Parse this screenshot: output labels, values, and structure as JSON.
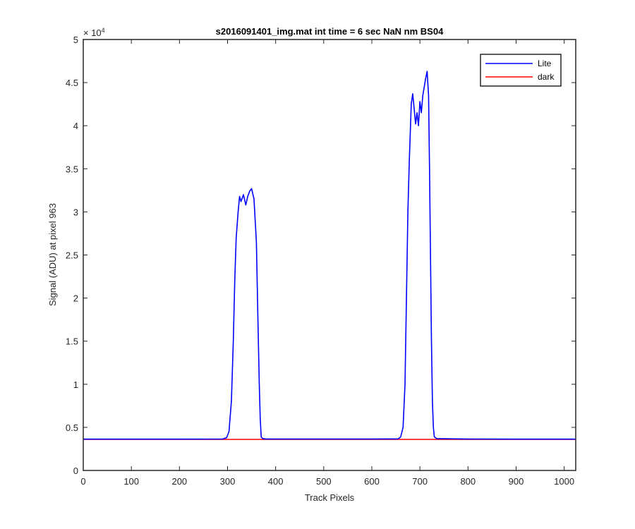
{
  "chart_data": {
    "type": "line",
    "title": "s2016091401_img.mat int time = 6 sec  NaN nm BS04",
    "xlabel": "Track Pixels",
    "ylabel": "Signal (ADU) at pixel 963",
    "xlim": [
      0,
      1024
    ],
    "ylim": [
      0,
      50000
    ],
    "xticks": [
      0,
      100,
      200,
      300,
      400,
      500,
      600,
      700,
      800,
      900,
      1000
    ],
    "xtick_labels": [
      "0",
      "100",
      "200",
      "300",
      "400",
      "500",
      "600",
      "700",
      "800",
      "900",
      "1000"
    ],
    "yticks": [
      0,
      5000,
      10000,
      15000,
      20000,
      25000,
      30000,
      35000,
      40000,
      45000,
      50000
    ],
    "ytick_labels": [
      "0",
      "0.5",
      "1",
      "1.5",
      "2",
      "2.5",
      "3",
      "3.5",
      "4",
      "4.5",
      "5"
    ],
    "y_exponent_label": "× 10",
    "y_exponent": "4",
    "grid": false,
    "legend_position": "top-right",
    "series": [
      {
        "name": "Lite",
        "color": "#0000ff",
        "x": [
          0,
          100,
          200,
          290,
          298,
          303,
          308,
          312,
          315,
          318,
          322,
          325,
          328,
          333,
          338,
          342,
          346,
          350,
          355,
          360,
          363,
          366,
          368,
          370,
          373,
          380,
          500,
          600,
          655,
          660,
          665,
          669,
          672,
          675,
          678,
          682,
          685,
          688,
          691,
          694,
          697,
          700,
          703,
          706,
          709,
          712,
          715,
          718,
          720,
          722,
          724,
          726,
          728,
          730,
          735,
          800,
          900,
          1024
        ],
        "y": [
          3640,
          3640,
          3640,
          3650,
          3800,
          4500,
          8000,
          15000,
          22000,
          27000,
          30000,
          31800,
          31200,
          32000,
          30800,
          31800,
          32400,
          32700,
          31500,
          26500,
          18000,
          10000,
          6000,
          3900,
          3700,
          3650,
          3650,
          3650,
          3670,
          3900,
          5000,
          10000,
          20000,
          30000,
          36000,
          42500,
          43700,
          42000,
          40200,
          41500,
          40000,
          42800,
          41500,
          43500,
          44500,
          45500,
          46300,
          43500,
          35000,
          25000,
          15000,
          8000,
          5000,
          3900,
          3700,
          3650,
          3640,
          3640
        ]
      },
      {
        "name": "dark",
        "color": "#ff0000",
        "x": [
          0,
          1024
        ],
        "y": [
          3600,
          3600
        ]
      }
    ]
  }
}
